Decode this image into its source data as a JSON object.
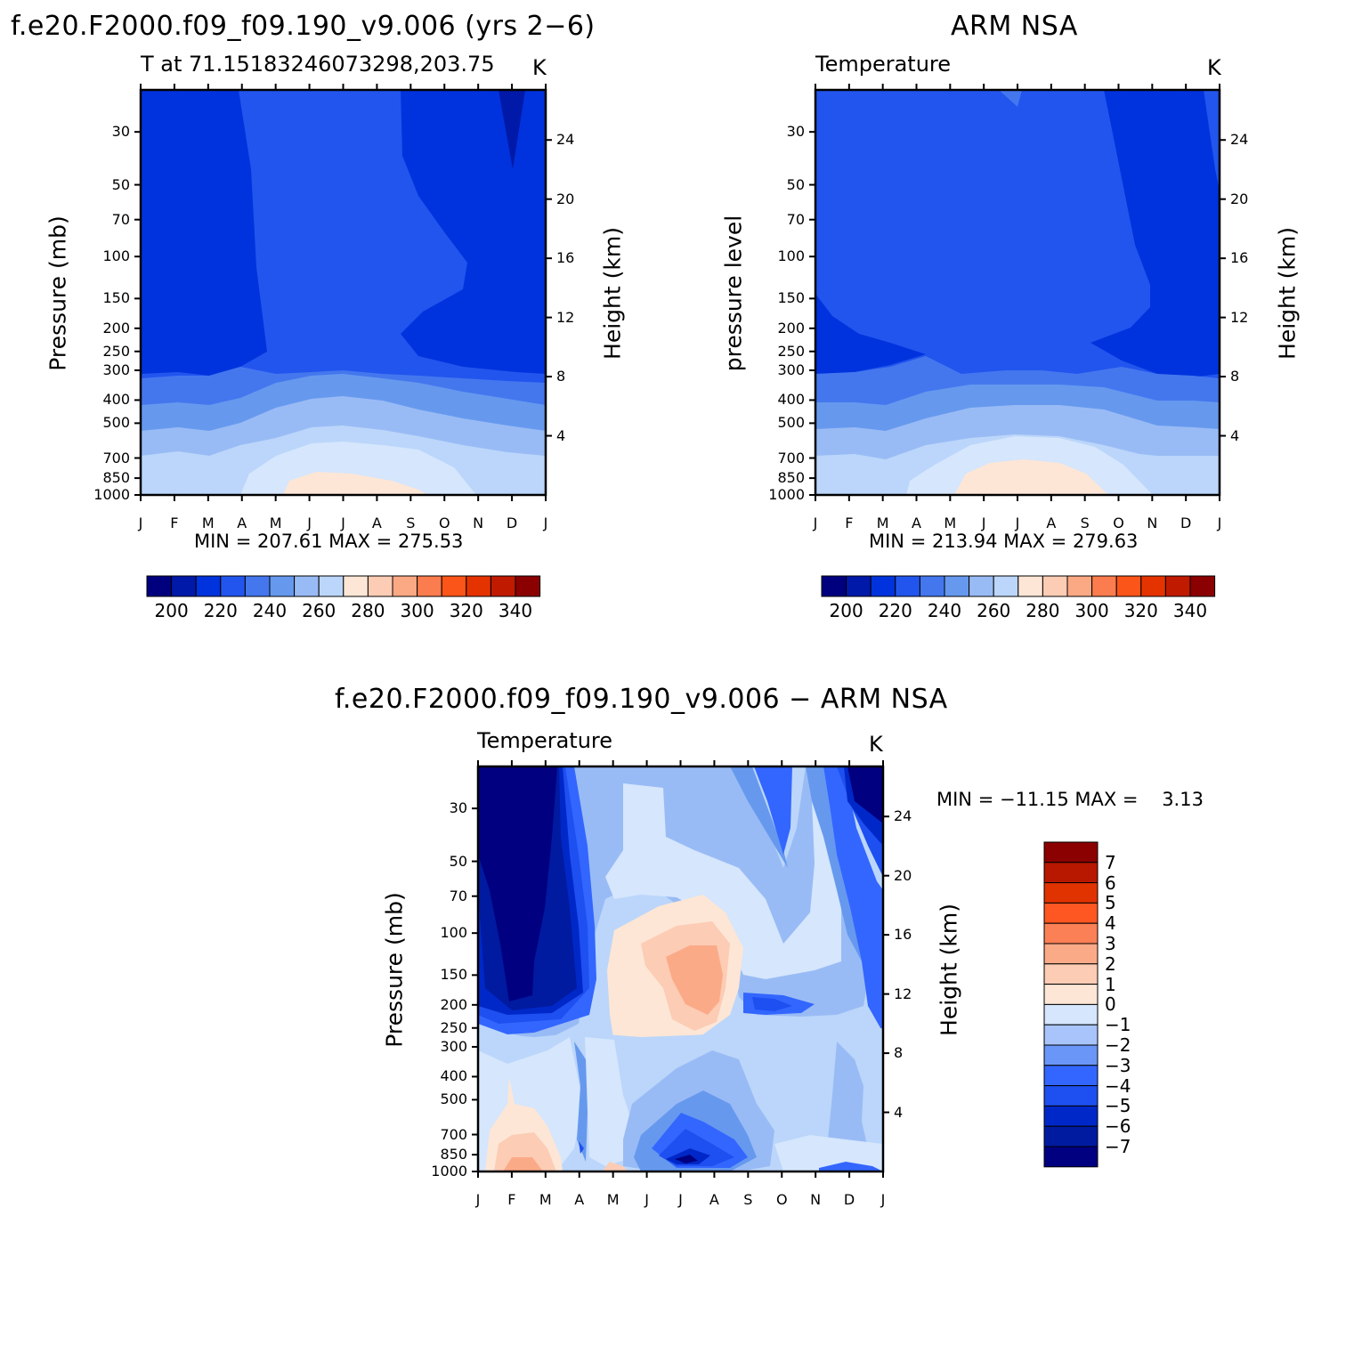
{
  "colors": {
    "temperature_fill": [
      "#00007f",
      "#0019a8",
      "#0033dd",
      "#2255ee",
      "#4477ee",
      "#6699ee",
      "#99bbf5",
      "#bbd6fa",
      "#fde6d6",
      "#fcccb5",
      "#fba884",
      "#fb7c4e",
      "#fb5519",
      "#e53300",
      "#c01a00",
      "#8b0000"
    ],
    "difference_fill": [
      "#000080",
      "#001aa0",
      "#0028c8",
      "#1e4ff0",
      "#3366ff",
      "#6a96f7",
      "#a8c4fa",
      "#d5e6fd",
      "#fde6d6",
      "#fcccb5",
      "#fbaa88",
      "#fb8055",
      "#ff5722",
      "#e03300",
      "#b81800",
      "#8b0000"
    ]
  },
  "panel_model": {
    "title": "f.e20.F2000.f09_f09.190_v9.006 (yrs 2−6)",
    "subtitle": "T at 71.15183246073298,203.75",
    "units": "K",
    "ylabel": "Pressure (mb)",
    "ylabel_right": "Height (km)",
    "stats": "MIN = 207.61 MAX = 275.53",
    "colorbar_labels": [
      "200",
      "220",
      "240",
      "260",
      "280",
      "300",
      "320",
      "340"
    ]
  },
  "panel_obs": {
    "title": "ARM NSA",
    "subtitle": "Temperature",
    "units": "K",
    "ylabel": "pressure level",
    "ylabel_right": "Height (km)",
    "stats": "MIN = 213.94 MAX = 279.63",
    "colorbar_labels": [
      "200",
      "220",
      "240",
      "260",
      "280",
      "300",
      "320",
      "340"
    ]
  },
  "panel_diff": {
    "title": "f.e20.F2000.f09_f09.190_v9.006 − ARM NSA",
    "subtitle": "Temperature",
    "units": "K",
    "ylabel": "Pressure (mb)",
    "ylabel_right": "Height (km)",
    "stats": "MIN = −11.15 MAX =    3.13",
    "colorbar_labels": [
      "7",
      "6",
      "5",
      "4",
      "3",
      "2",
      "1",
      "0",
      "−1",
      "−2",
      "−3",
      "−4",
      "−5",
      "−6",
      "−7"
    ]
  },
  "chart_data": [
    {
      "type": "heatmap",
      "title": "f.e20.F2000.f09_f09.190_v9.006 (yrs 2−6)",
      "subtitle": "T at 71.15183246073298,203.75",
      "units": "K",
      "x": [
        "J",
        "F",
        "M",
        "A",
        "M",
        "J",
        "J",
        "A",
        "S",
        "O",
        "N",
        "D",
        "J"
      ],
      "y_pressure": [
        30,
        50,
        70,
        100,
        150,
        200,
        250,
        300,
        400,
        500,
        700,
        850,
        1000
      ],
      "y_height_km": [
        4,
        8,
        12,
        16,
        20,
        24
      ],
      "ylabel": "Pressure (mb)",
      "ylabel_right": "Height (km)",
      "levels": [
        200,
        205,
        210,
        215,
        220,
        225,
        230,
        235,
        240,
        245,
        250,
        255,
        260,
        265,
        270,
        275,
        280
      ],
      "stats": {
        "min": 207.61,
        "max": 275.53
      },
      "colorbar": [
        "200",
        "220",
        "240",
        "260",
        "280",
        "300",
        "320",
        "340"
      ]
    },
    {
      "type": "heatmap",
      "title": "ARM NSA",
      "subtitle": "Temperature",
      "units": "K",
      "x": [
        "J",
        "F",
        "M",
        "A",
        "M",
        "J",
        "J",
        "A",
        "S",
        "O",
        "N",
        "D",
        "J"
      ],
      "y_pressure": [
        30,
        50,
        70,
        100,
        150,
        200,
        250,
        300,
        400,
        500,
        700,
        850,
        1000
      ],
      "y_height_km": [
        4,
        8,
        12,
        16,
        20,
        24
      ],
      "ylabel": "pressure level",
      "ylabel_right": "Height (km)",
      "stats": {
        "min": 213.94,
        "max": 279.63
      },
      "colorbar": [
        "200",
        "220",
        "240",
        "260",
        "280",
        "300",
        "320",
        "340"
      ]
    },
    {
      "type": "heatmap",
      "title": "f.e20.F2000.f09_f09.190_v9.006 − ARM NSA",
      "subtitle": "Temperature",
      "units": "K",
      "x": [
        "J",
        "F",
        "M",
        "A",
        "M",
        "J",
        "J",
        "A",
        "S",
        "O",
        "N",
        "D",
        "J"
      ],
      "y_pressure": [
        30,
        50,
        70,
        100,
        150,
        200,
        250,
        300,
        400,
        500,
        700,
        850,
        1000
      ],
      "y_height_km": [
        4,
        8,
        12,
        16,
        20,
        24
      ],
      "ylabel": "Pressure (mb)",
      "ylabel_right": "Height (km)",
      "stats": {
        "min": -11.15,
        "max": 3.13
      },
      "colorbar": [
        "7",
        "6",
        "5",
        "4",
        "3",
        "2",
        "1",
        "0",
        "−1",
        "−2",
        "−3",
        "−4",
        "−5",
        "−6",
        "−7"
      ]
    }
  ]
}
